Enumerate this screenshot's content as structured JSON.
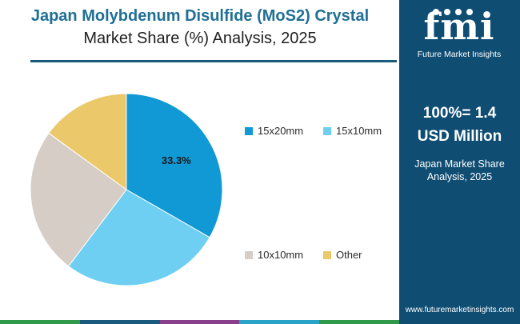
{
  "title": {
    "line1": "Japan Molybdenum Disulfide (MoS2) Crystal",
    "line2": "Market Share (%) Analysis, 2025"
  },
  "logo": {
    "text": "fmi",
    "tagline": "Future Market Insights"
  },
  "summary": {
    "total_line1": "100%= 1.4",
    "total_line2": "USD Million",
    "caption_line1": "Japan Market Share",
    "caption_line2": "Analysis, 2025"
  },
  "website": "www.futuremarketinsights.com",
  "colors": {
    "sidebar": "#0f4d73",
    "title_accent": "#1f6f96",
    "bottom_bar": [
      "#2e9a4a",
      "#1a5a7e",
      "#8a3f8c",
      "#2aa3c8",
      "#2e9a4a"
    ]
  },
  "chart_data": {
    "type": "pie",
    "title": "Japan Molybdenum Disulfide (MoS2) Crystal Market Share (%) Analysis, 2025",
    "legend_position": "right",
    "slices": [
      {
        "name": "15x20mm",
        "value": 33.3,
        "color": "#1199d5",
        "label": "33.3%"
      },
      {
        "name": "15x10mm",
        "value": 27.0,
        "color": "#6ecff2",
        "label": ""
      },
      {
        "name": "10x10mm",
        "value": 24.7,
        "color": "#d5cdc6",
        "label": ""
      },
      {
        "name": "Other",
        "value": 15.0,
        "color": "#ebc86a",
        "label": ""
      }
    ]
  }
}
